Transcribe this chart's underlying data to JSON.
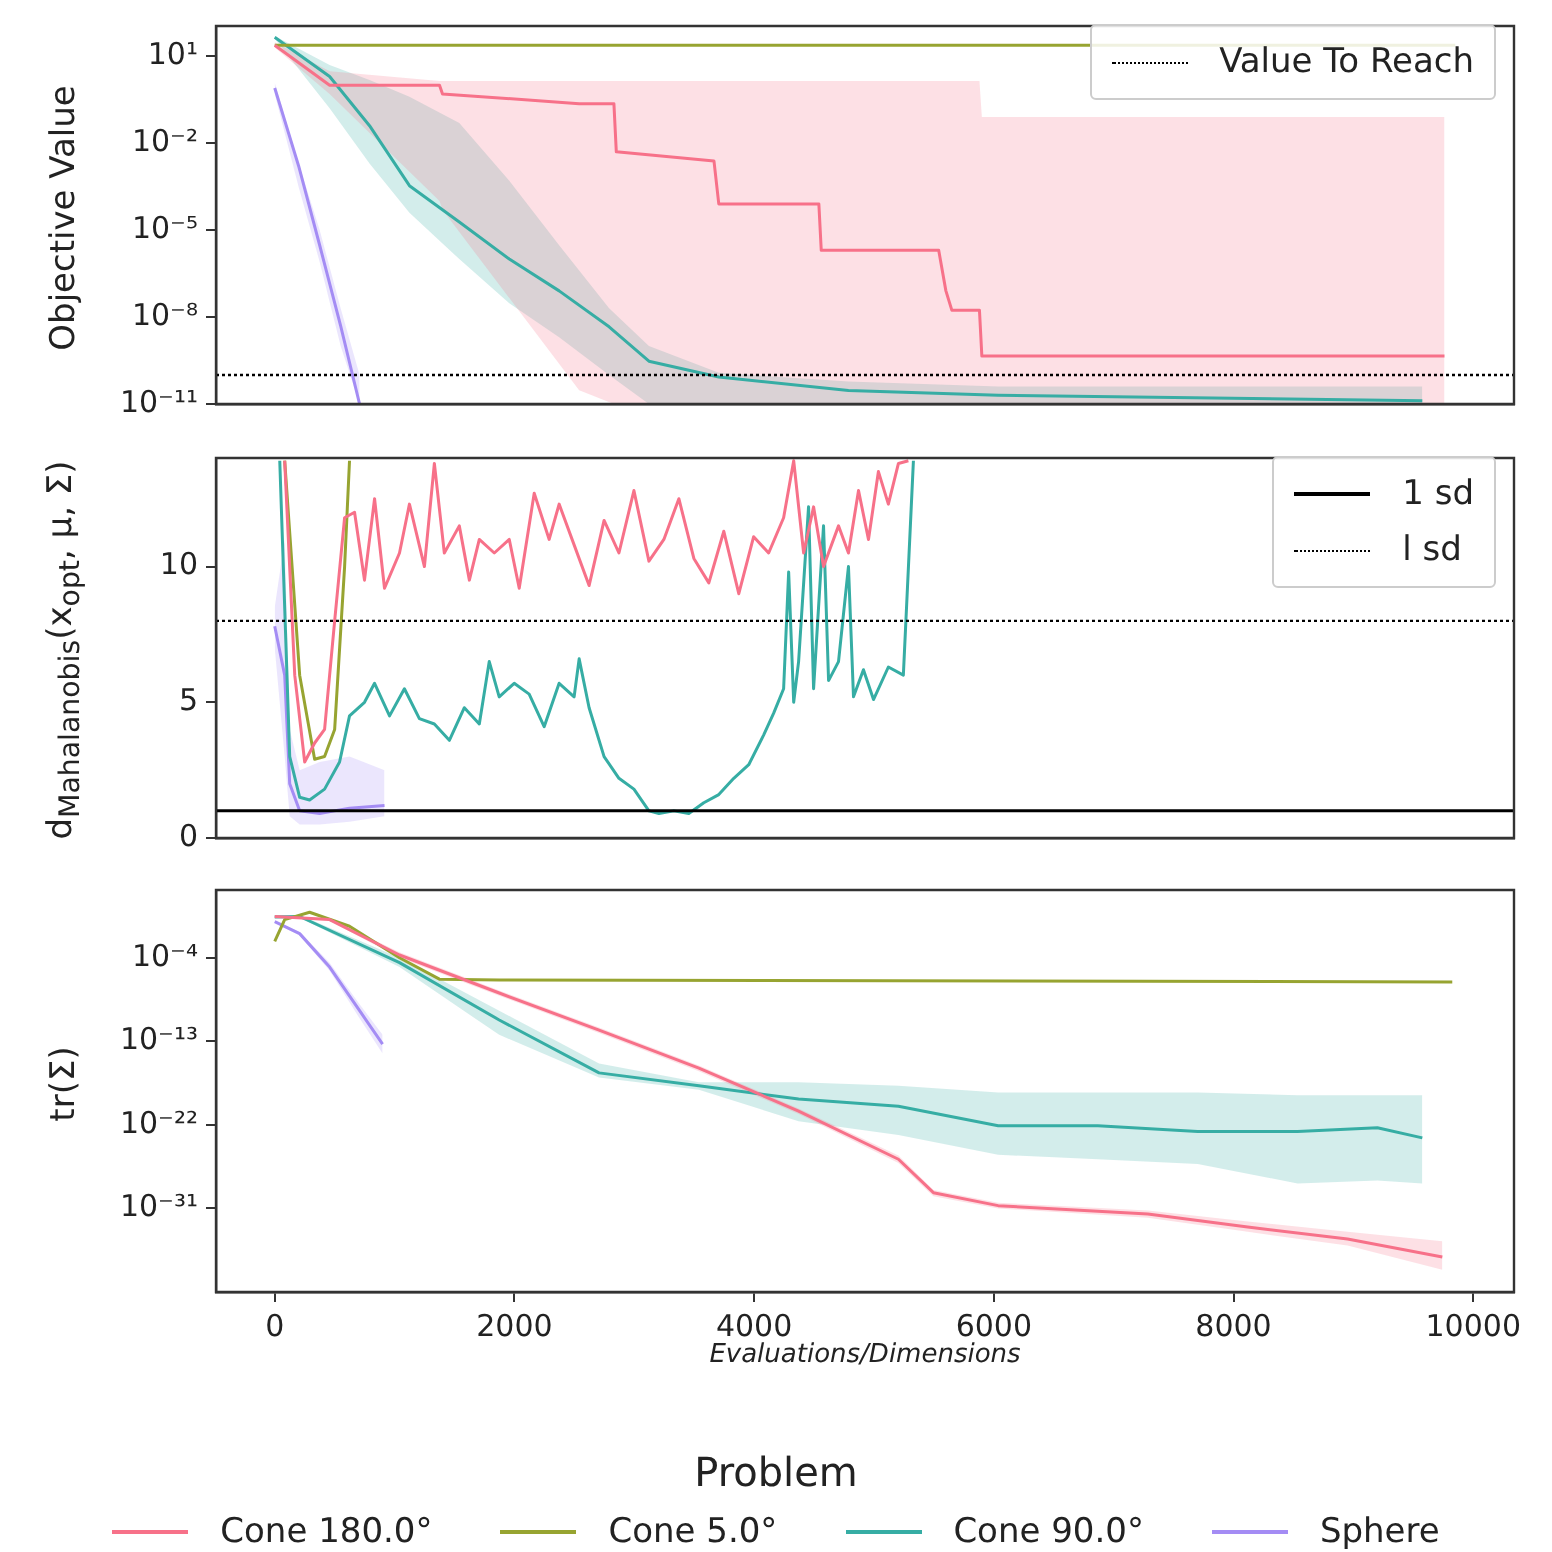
{
  "chart_data": [
    {
      "type": "line",
      "ylabel": "Objective Value",
      "xlim": [
        -490,
        10340
      ],
      "ylim": [
        1e-11,
        110
      ],
      "log": "y",
      "tick_labels": "y",
      "legend": "top right",
      "yticks": [
        {
          "value": 10,
          "label": "10¹"
        },
        {
          "value": 0.01,
          "label": "10⁻²"
        },
        {
          "value": 1e-05,
          "label": "10⁻⁵"
        },
        {
          "value": 1e-08,
          "label": "10⁻⁸"
        },
        {
          "value": 1e-11,
          "label": "10⁻¹¹"
        }
      ],
      "ref_lines": [
        {
          "axis": "y",
          "value": 1e-10,
          "label": "Value To Reach",
          "line_style": "dotted"
        }
      ],
      "series": [
        {
          "color": "#f77189",
          "x": [
            0,
            458,
            1375,
            1400,
            2540,
            2830,
            2850,
            3665,
            3705,
            4540,
            4560,
            5540,
            5600,
            5650,
            5880,
            5900,
            9760
          ],
          "values": [
            24,
            1,
            1,
            0.5,
            0.23,
            0.23,
            0.005,
            0.0024,
            8e-05,
            8e-05,
            2e-06,
            2e-06,
            8e-08,
            1.7e-08,
            1.7e-08,
            4.5e-10,
            4.5e-10
          ],
          "upper": [
            30,
            3,
            1.4,
            1.4,
            1.4,
            1.4,
            1.4,
            1.4,
            1.4,
            1.4,
            1.4,
            1.4,
            1.4,
            1.4,
            1.4,
            0.08,
            0.08
          ],
          "lower": [
            20,
            0.5,
            0.0001,
            5e-05,
            3e-11,
            1e-11,
            1e-11,
            1e-11,
            1e-11,
            1e-11,
            1e-11,
            1e-11,
            1e-11,
            1e-11,
            1e-11,
            1e-11,
            1e-11
          ]
        },
        {
          "color": "#97a431",
          "x": [
            0,
            9850
          ],
          "values": [
            24,
            24
          ]
        },
        {
          "color": "#36ada4",
          "x": [
            0,
            458,
            791,
            1124,
            1540,
            1957,
            2373,
            2790,
            3122,
            3705,
            4787,
            6036,
            9575
          ],
          "values": [
            45,
            2,
            0.04,
            0.00034,
            1.9e-05,
            1e-06,
            8e-08,
            4.6e-09,
            3e-10,
            8.5e-11,
            2.9e-11,
            2e-11,
            1.3e-11
          ],
          "upper": [
            50,
            5,
            1.5,
            0.4,
            0.05,
            0.0005,
            3e-06,
            2e-08,
            1e-09,
            1.2e-10,
            6e-11,
            4e-11,
            4e-11
          ],
          "lower": [
            40,
            0.16,
            0.002,
            4e-05,
            1e-06,
            3e-08,
            2e-09,
            1e-10,
            1e-11,
            1e-11,
            1e-11,
            1e-11,
            1e-11
          ]
        },
        {
          "color": "#a48cf4",
          "x": [
            0,
            200,
            375,
            550,
            708
          ],
          "values": [
            0.8,
            0.0016,
            3e-06,
            5e-09,
            1e-11
          ],
          "upper": [
            1.2,
            0.002,
            1e-05,
            2e-08,
            1e-10
          ],
          "lower": [
            0.5,
            0.0003,
            8e-07,
            1e-09,
            1e-11
          ]
        }
      ]
    },
    {
      "type": "line",
      "ylabel": "d$_{Mahalanobis}$(x$_{opt}$, μ, Σ)",
      "xlim": [
        -490,
        10340
      ],
      "ylim": [
        0,
        14
      ],
      "yticks": [
        0,
        5,
        10
      ],
      "tick_labels": "y",
      "legend": "top right",
      "ref_lines": [
        {
          "axis": "y",
          "value": 1,
          "label": "1 sd",
          "line_style": "solid"
        },
        {
          "axis": "y",
          "value": 8,
          "label": "l sd",
          "line_style": "dotted"
        }
      ],
      "series": [
        {
          "color": "#f77189",
          "x": [
            83,
            167,
            250,
            333,
            416,
            500,
            583,
            666,
            749,
            833,
            916,
            1041,
            1124,
            1249,
            1332,
            1415,
            1540,
            1624,
            1707,
            1832,
            1957,
            2040,
            2165,
            2290,
            2373,
            2498,
            2623,
            2748,
            2872,
            2997,
            3122,
            3247,
            3372,
            3497,
            3622,
            3747,
            3872,
            3996,
            4121,
            4246,
            4330,
            4413,
            4496,
            4579,
            4704,
            4787,
            4871,
            4954,
            5037,
            5120,
            5204,
            5287
          ],
          "values": [
            13.9,
            6,
            2.8,
            3.5,
            4,
            8,
            11.8,
            12,
            9.5,
            12.5,
            9.2,
            10.5,
            12.3,
            10,
            13.8,
            10.5,
            11.5,
            9.5,
            11,
            10.5,
            11,
            9.2,
            12.7,
            11,
            12.3,
            10.8,
            9.3,
            11.7,
            10.5,
            12.8,
            10.2,
            11,
            12.5,
            10.3,
            9.4,
            11.3,
            9,
            11.1,
            10.5,
            11.8,
            13.9,
            10.5,
            12.2,
            10,
            11.5,
            10.5,
            12.8,
            11,
            13.5,
            12.3,
            13.8,
            13.9
          ]
        },
        {
          "color": "#97a431",
          "x": [
            83,
            208,
            333,
            416,
            500,
            583,
            624
          ],
          "values": [
            13.9,
            6,
            2.9,
            3,
            4,
            10,
            13.9
          ]
        },
        {
          "color": "#36ada4",
          "x": [
            42,
            125,
            208,
            291,
            416,
            541,
            624,
            749,
            833,
            958,
            1082,
            1207,
            1332,
            1457,
            1582,
            1707,
            1790,
            1873,
            1998,
            2123,
            2248,
            2373,
            2498,
            2540,
            2623,
            2748,
            2872,
            2997,
            3122,
            3206,
            3330,
            3455,
            3580,
            3705,
            3830,
            3955,
            4080,
            4163,
            4246,
            4288,
            4330,
            4371,
            4454,
            4496,
            4579,
            4621,
            4704,
            4787,
            4829,
            4912,
            4996,
            5120,
            5245,
            5329
          ],
          "values": [
            13.9,
            3,
            1.5,
            1.4,
            1.8,
            2.8,
            4.5,
            5,
            5.7,
            4.5,
            5.5,
            4.4,
            4.2,
            3.6,
            4.8,
            4.2,
            6.5,
            5.2,
            5.7,
            5.3,
            4.1,
            5.7,
            5.2,
            6.6,
            4.8,
            3,
            2.2,
            1.8,
            1,
            0.9,
            1,
            0.9,
            1.3,
            1.6,
            2.2,
            2.7,
            3.8,
            4.6,
            5.5,
            9.8,
            5,
            6.5,
            12.2,
            5.5,
            11.5,
            5.8,
            6.5,
            10,
            5.2,
            6.2,
            5.1,
            6.3,
            6,
            13.9
          ]
        },
        {
          "color": "#a48cf4",
          "x": [
            0,
            83,
            125,
            208,
            375,
            624,
            916
          ],
          "values": [
            7.8,
            6,
            2,
            1,
            0.9,
            1.1,
            1.2
          ],
          "upper": [
            8.5,
            11,
            4,
            2.5,
            2.8,
            3,
            2.5
          ],
          "lower": [
            7,
            3,
            0.8,
            0.5,
            0.5,
            0.6,
            0.8
          ]
        }
      ]
    },
    {
      "type": "line",
      "ylabel": "tr(Σ)",
      "xlabel": "Evaluations/Dimensions",
      "xlim": [
        -490,
        10340
      ],
      "xticks": [
        0,
        2000,
        4000,
        6000,
        8000,
        10000
      ],
      "ylim": [
        1e-40,
        2000
      ],
      "log": "y",
      "legend": "bottom",
      "legend_title": "Problem",
      "yticks": [
        {
          "value": 0.0001,
          "label": "10⁻⁴"
        },
        {
          "value": 1e-13,
          "label": "10⁻¹³"
        },
        {
          "value": 1e-22,
          "label": "10⁻²²"
        },
        {
          "value": 1e-31,
          "label": "10⁻³¹"
        }
      ],
      "series": [
        {
          "name": "Cone 180.0°",
          "color": "#f77189",
          "x": [
            0,
            458,
            1041,
            1873,
            2706,
            3539,
            4371,
            5204,
            5496,
            6036,
            7285,
            8118,
            8951,
            9742
          ],
          "values": [
            2.8,
            1.3,
            0.0002,
            1.6e-08,
            1.6e-12,
            1.3e-16,
            3e-21,
            2e-26,
            5e-30,
            2e-31,
            2.5e-32,
            1e-33,
            5e-35,
            6e-37
          ],
          "upper": [
            3.5,
            1.8,
            0.0004,
            3e-08,
            3e-12,
            2.5e-16,
            6e-21,
            5e-26,
            1e-29,
            4e-31,
            6e-32,
            4e-33,
            3e-34,
            3e-35
          ],
          "lower": [
            2.2,
            0.9,
            0.0001,
            8e-09,
            8e-13,
            6e-17,
            1.5e-21,
            8e-27,
            2e-30,
            1e-31,
            1e-32,
            3e-34,
            1e-35,
            2.5e-38
          ]
        },
        {
          "name": "Cone 5.0°",
          "color": "#97a431",
          "x": [
            0,
            83,
            291,
            624,
            1041,
            1374,
            1873,
            9825
          ],
          "values": [
            0.006,
            1.3,
            8,
            0.25,
            0.0001,
            5e-07,
            4e-07,
            2.5e-07
          ]
        },
        {
          "name": "Cone 90.0°",
          "color": "#36ada4",
          "x": [
            0,
            208,
            1041,
            1873,
            2706,
            3539,
            4371,
            5204,
            6036,
            6868,
            7701,
            8534,
            9200,
            9575
          ],
          "values": [
            2.4,
            2.8,
            3e-05,
            2e-11,
            4e-17,
            1.6e-18,
            6e-20,
            1e-20,
            8e-23,
            8e-23,
            2e-23,
            2e-23,
            5e-23,
            4e-24
          ],
          "upper": [
            4,
            4,
            0.0001,
            2e-10,
            4e-16,
            4e-18,
            4e-18,
            1.6e-18,
            3e-19,
            3e-19,
            3e-19,
            1.6e-19,
            1.6e-19,
            1.6e-19
          ],
          "lower": [
            2,
            2,
            1e-05,
            5e-13,
            1.3e-17,
            6e-19,
            2.5e-22,
            8e-24,
            6e-26,
            2e-26,
            6e-27,
            5e-29,
            1e-28,
            5e-29
          ]
        },
        {
          "name": "Sphere",
          "color": "#a48cf4",
          "x": [
            0,
            208,
            458,
            708,
            900
          ],
          "values": [
            0.8,
            0.04,
            1e-05,
            2e-10,
            5e-14
          ],
          "upper": [
            1,
            0.06,
            3e-05,
            1e-09,
            5e-13
          ],
          "lower": [
            0.6,
            0.025,
            4e-06,
            3e-11,
            5e-15
          ]
        }
      ]
    }
  ]
}
